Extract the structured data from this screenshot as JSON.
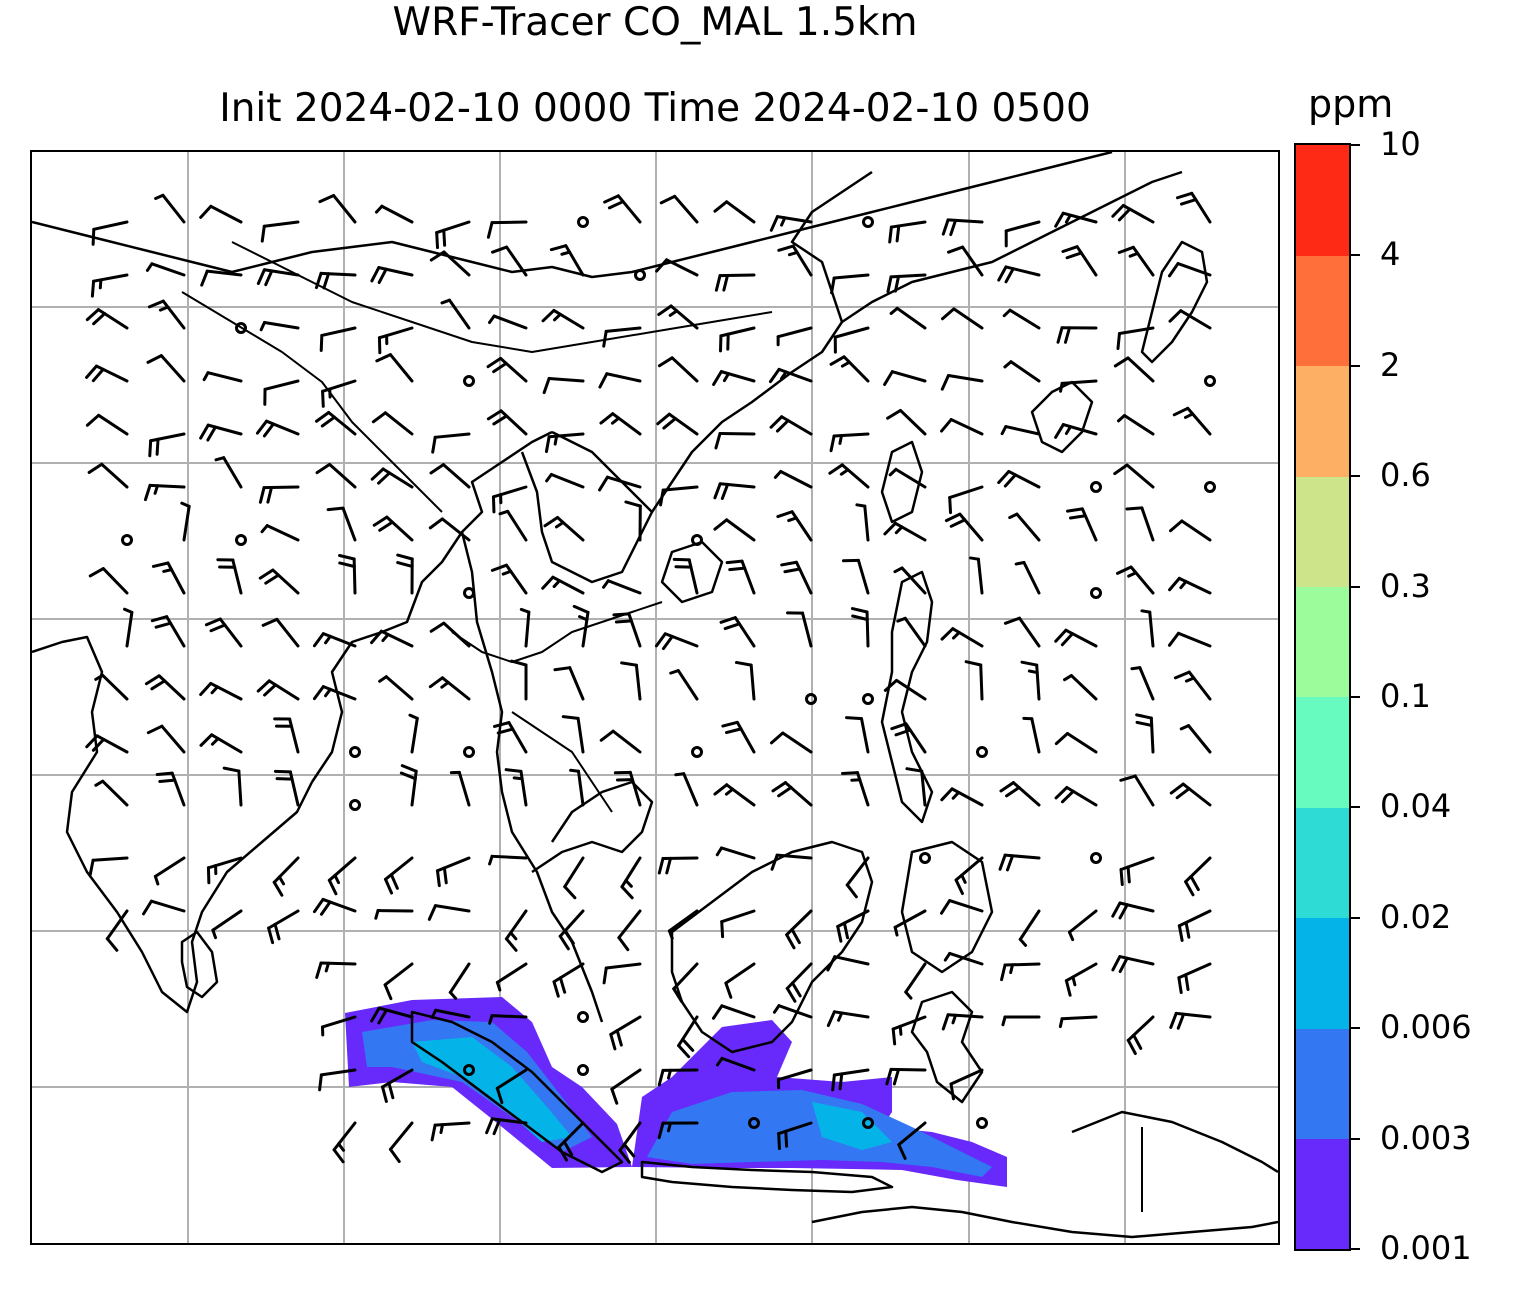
{
  "title_line1": "WRF-Tracer CO_MAL 1.5km",
  "title_line2": "Init 2024-02-10 0000 Time 2024-02-10 0500",
  "colorbar": {
    "units": "ppm",
    "levels": [
      "0.001",
      "0.003",
      "0.006",
      "0.02",
      "0.04",
      "0.1",
      "0.3",
      "0.6",
      "2",
      "4",
      "10"
    ],
    "colors": [
      "#6829fb",
      "#3378f2",
      "#04b4e8",
      "#2fdcd5",
      "#68fbbf",
      "#9cfc9b",
      "#cde48b",
      "#fdb063",
      "#fe6f3a",
      "#fe2a16"
    ]
  },
  "map": {
    "gridlines": true,
    "features": [
      "coastlines",
      "country-borders",
      "wind-barbs",
      "tracer-concentration-field"
    ],
    "calm_marker": "circle"
  }
}
